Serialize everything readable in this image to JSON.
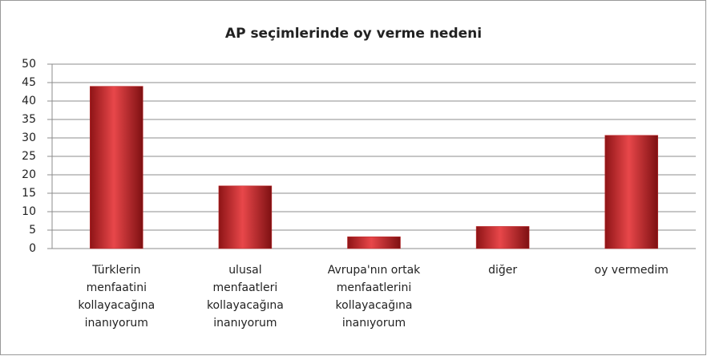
{
  "chart_data": {
    "type": "bar",
    "title": "AP seçimlerinde oy verme nedeni",
    "categories": [
      "Türklerin\nmenfaatini\nkollayacağına\ninanıyorum",
      "ulusal\nmenfaatleri\nkollayacağına\ninanıyorum",
      "Avrupa'nın ortak\nmenfaatlerini\nkollayacağına\ninanıyorum",
      "diğer",
      "oy vermedim"
    ],
    "values": [
      44,
      17,
      3.2,
      6,
      30.7
    ],
    "color": "#c0282a",
    "ylim": [
      0,
      50
    ],
    "yticks": [
      0,
      5,
      10,
      15,
      20,
      25,
      30,
      35,
      40,
      45,
      50
    ],
    "grid": true
  }
}
